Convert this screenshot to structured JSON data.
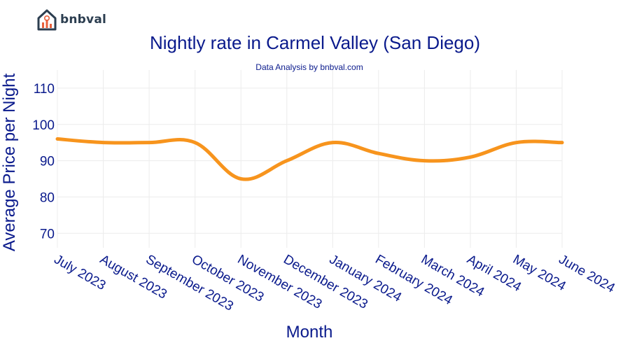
{
  "brand": {
    "name": "bnbval"
  },
  "colors": {
    "line": "#f7941d",
    "text": "#0a1a8c",
    "grid": "#ececec",
    "logo": "#2c3e50",
    "logo_accent": "#e8603c"
  },
  "chart_data": {
    "type": "line",
    "title": "Nightly rate in Carmel Valley (San Diego)",
    "subtitle": "Data Analysis by bnbval.com",
    "xlabel": "Month",
    "ylabel": "Average Price per Night",
    "ylim": [
      66,
      115
    ],
    "yticks": [
      "70",
      "80",
      "90",
      "100",
      "110"
    ],
    "ytick_values": [
      70,
      80,
      90,
      100,
      110
    ],
    "categories": [
      "July 2023",
      "August 2023",
      "September 2023",
      "October 2023",
      "November 2023",
      "December 2023",
      "January 2024",
      "February 2024",
      "March 2024",
      "April 2024",
      "May 2024",
      "June 2024"
    ],
    "series": [
      {
        "name": "Average Price per Night",
        "values": [
          96,
          95,
          95,
          95,
          85,
          90,
          95,
          92,
          90,
          91,
          95,
          95
        ]
      }
    ],
    "grid": true
  }
}
